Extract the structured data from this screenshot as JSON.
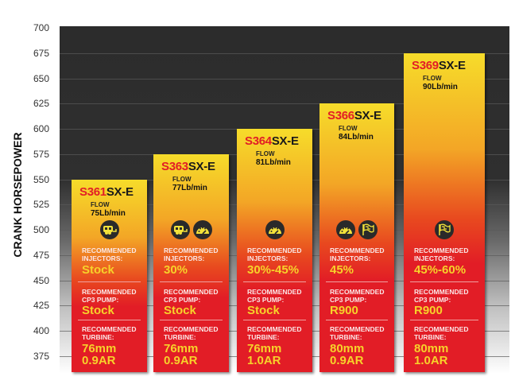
{
  "chart_data": {
    "type": "bar",
    "ylabel": "CRANK HORSEPOWER",
    "ylim": [
      375,
      700
    ],
    "yticks": [
      700,
      675,
      650,
      625,
      600,
      575,
      550,
      525,
      500,
      475,
      450,
      425,
      400,
      375
    ],
    "grid": true,
    "colors": {
      "bar_top": "#f6dc2a",
      "bar_bottom": "#e21d26",
      "model_accent": "#e21d26",
      "value_text": "#f7d22a",
      "icon_bg": "#2a2a2a"
    },
    "series": [
      {
        "model_num": "S361",
        "model_suffix": "SX-E",
        "value": 550,
        "flow_label": "FLOW",
        "flow": "75Lb/min",
        "icons": [
          "trailer-icon"
        ],
        "injectors_label": [
          "RECOMMENDED",
          "INJECTORS:"
        ],
        "injectors": "Stock",
        "pump_label": [
          "RECOMMENDED",
          "CP3 PUMP:"
        ],
        "pump": "Stock",
        "turbine_label": [
          "RECOMMENDED",
          "TURBINE:"
        ],
        "turbine": [
          "76mm",
          "0.9AR"
        ]
      },
      {
        "model_num": "S363",
        "model_suffix": "SX-E",
        "value": 575,
        "flow_label": "FLOW",
        "flow": "77Lb/min",
        "icons": [
          "trailer-icon",
          "gauge-icon"
        ],
        "injectors_label": [
          "RECOMMENDED",
          "INJECTORS:"
        ],
        "injectors": "30%",
        "pump_label": [
          "RECOMMENDED",
          "CP3 PUMP:"
        ],
        "pump": "Stock",
        "turbine_label": [
          "RECOMMENDED",
          "TURBINE:"
        ],
        "turbine": [
          "76mm",
          "0.9AR"
        ]
      },
      {
        "model_num": "S364",
        "model_suffix": "SX-E",
        "value": 600,
        "flow_label": "FLOW",
        "flow": "81Lb/min",
        "icons": [
          "gauge-icon"
        ],
        "injectors_label": [
          "RECOMMENDED",
          "INJECTORS:"
        ],
        "injectors": "30%-45%",
        "pump_label": [
          "RECOMMENDED",
          "CP3 PUMP:"
        ],
        "pump": "Stock",
        "turbine_label": [
          "RECOMMENDED",
          "TURBINE:"
        ],
        "turbine": [
          "76mm",
          "1.0AR"
        ]
      },
      {
        "model_num": "S366",
        "model_suffix": "SX-E",
        "value": 625,
        "flow_label": "FLOW",
        "flow": "84Lb/min",
        "icons": [
          "gauge-icon",
          "checkered-flag-icon"
        ],
        "injectors_label": [
          "RECOMMENDED",
          "INJECTORS:"
        ],
        "injectors": "45%",
        "pump_label": [
          "RECOMMENDED",
          "CP3 PUMP:"
        ],
        "pump": "R900",
        "turbine_label": [
          "RECOMMENDED",
          "TURBINE:"
        ],
        "turbine": [
          "80mm",
          "0.9AR"
        ]
      },
      {
        "model_num": "S369",
        "model_suffix": "SX-E",
        "value": 675,
        "flow_label": "FLOW",
        "flow": "90Lb/min",
        "icons": [
          "checkered-flag-icon"
        ],
        "injectors_label": [
          "RECOMMENDED",
          "INJECTORS:"
        ],
        "injectors": "45%-60%",
        "pump_label": [
          "RECOMMENDED",
          "CP3 PUMP:"
        ],
        "pump": "R900",
        "turbine_label": [
          "RECOMMENDED",
          "TURBINE:"
        ],
        "turbine": [
          "80mm",
          "1.0AR"
        ]
      }
    ]
  }
}
